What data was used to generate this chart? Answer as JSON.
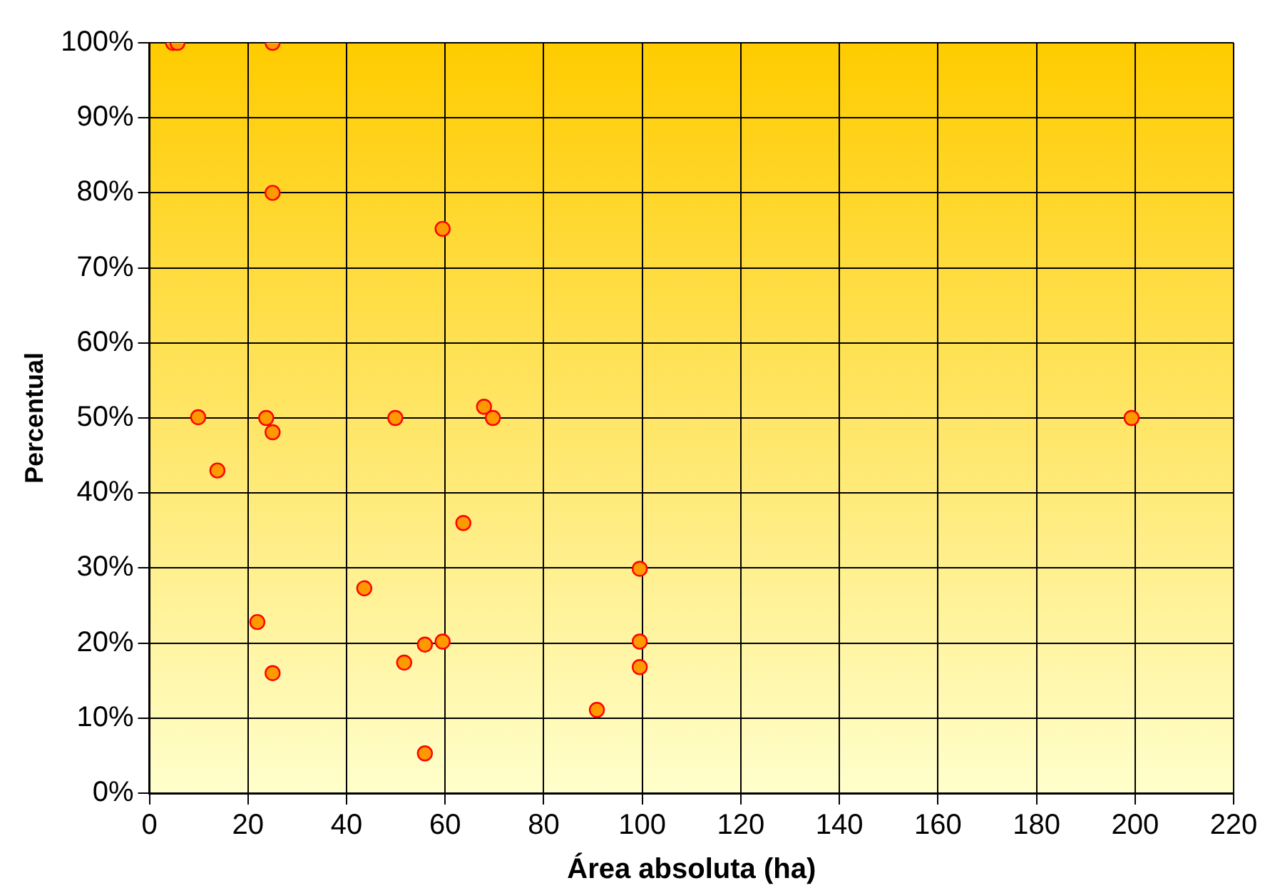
{
  "chart_data": {
    "type": "scatter",
    "xlabel": "Área absoluta (ha)",
    "ylabel": "Percentual",
    "x": [
      4.8,
      5.7,
      25,
      25,
      59.5,
      9.9,
      23.7,
      25,
      13.8,
      49.9,
      67.9,
      69.7,
      63.7,
      43.6,
      21.9,
      25,
      51.7,
      55.9,
      59.5,
      55.9,
      99.5,
      99.5,
      99.5,
      90.8,
      199.3
    ],
    "series": [
      {
        "color": "#ff9900",
        "values": [
          100,
          100,
          100,
          80,
          75.2,
          50.1,
          50,
          48.1,
          43,
          50,
          51.5,
          50,
          36,
          27.3,
          22.8,
          16,
          17.4,
          19.8,
          20.2,
          5.3,
          29.9,
          20.2,
          16.8,
          11.1,
          50
        ]
      }
    ],
    "xlim": [
      0,
      220
    ],
    "xticks": [
      0,
      20,
      40,
      60,
      80,
      100,
      120,
      140,
      160,
      180,
      200,
      220
    ],
    "ylim": [
      0,
      100
    ],
    "yticks": [
      {
        "value": 0,
        "label": "0%"
      },
      {
        "value": 10,
        "label": "10%"
      },
      {
        "value": 20,
        "label": "20%"
      },
      {
        "value": 30,
        "label": "30%"
      },
      {
        "value": 40,
        "label": "40%"
      },
      {
        "value": 50,
        "label": "50%"
      },
      {
        "value": 60,
        "label": "60%"
      },
      {
        "value": 70,
        "label": "70%"
      },
      {
        "value": 80,
        "label": "80%"
      },
      {
        "value": 90,
        "label": "90%"
      },
      {
        "value": 100,
        "label": "100%"
      }
    ],
    "grid": true,
    "legend": false,
    "marker": "circle"
  }
}
